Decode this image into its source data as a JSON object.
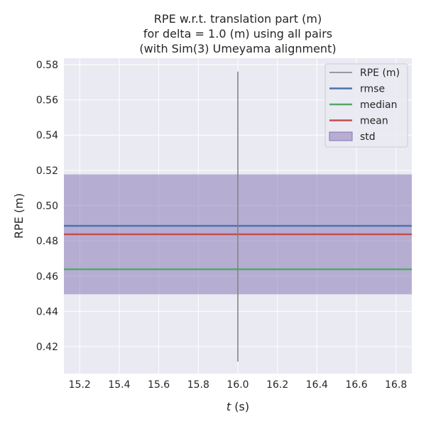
{
  "chart_data": {
    "type": "line",
    "title": [
      "RPE w.r.t. translation part (m)",
      "for delta = 1.0 (m) using all pairs",
      "(with Sim(3) Umeyama alignment)"
    ],
    "xlabel_var": "t",
    "xlabel_unit": " (s)",
    "ylabel": "RPE (m)",
    "xlim": [
      15.12,
      16.88
    ],
    "ylim": [
      0.4047,
      0.5836
    ],
    "xticks": [
      15.2,
      15.4,
      15.6,
      15.8,
      16.0,
      16.2,
      16.4,
      16.6,
      16.8
    ],
    "xtick_labels": [
      "15.2",
      "15.4",
      "15.6",
      "15.8",
      "16.0",
      "16.2",
      "16.4",
      "16.6",
      "16.8"
    ],
    "yticks": [
      0.42,
      0.44,
      0.46,
      0.48,
      0.5,
      0.52,
      0.54,
      0.56,
      0.58
    ],
    "ytick_labels": [
      "0.42",
      "0.44",
      "0.46",
      "0.48",
      "0.50",
      "0.52",
      "0.54",
      "0.56",
      "0.58"
    ],
    "grid": true,
    "legend_position": "top-right",
    "rpe_series": {
      "name": "RPE (m)",
      "x": [
        16.0,
        16.0
      ],
      "y": [
        0.4115,
        0.576
      ],
      "color": "#808080"
    },
    "stats": {
      "rmse": {
        "name": "rmse",
        "value": 0.4885,
        "color": "#4C72B0"
      },
      "median": {
        "name": "median",
        "value": 0.4639,
        "color": "#55A868"
      },
      "mean": {
        "name": "mean",
        "value": 0.4837,
        "color": "#C44E52"
      },
      "std": {
        "name": "std",
        "value": 0.034,
        "color": "#8172B2"
      }
    },
    "background": "#EAEAF2"
  }
}
